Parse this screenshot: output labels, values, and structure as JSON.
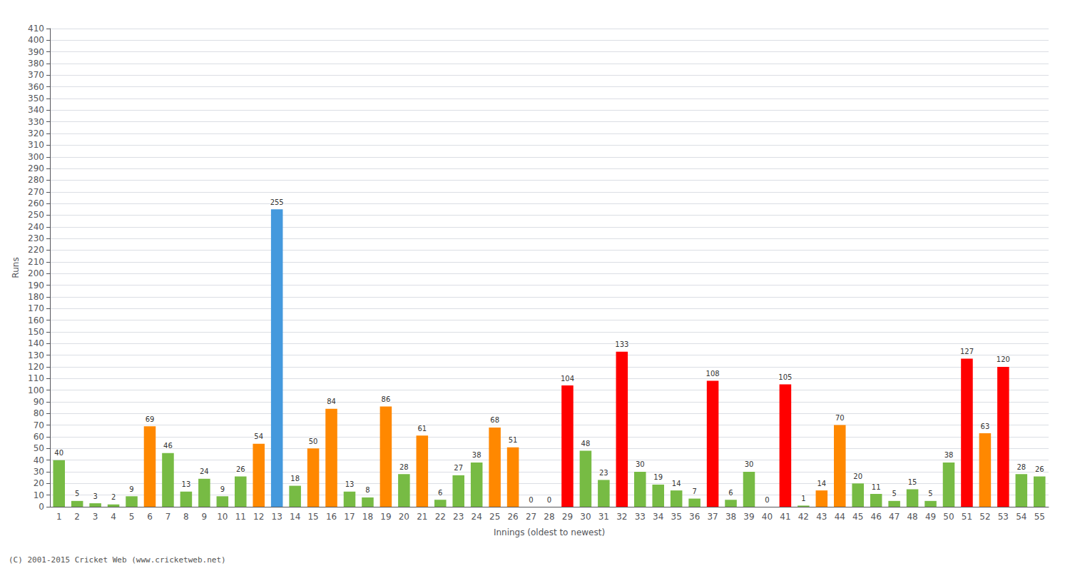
{
  "chart_data": {
    "type": "bar",
    "categories": [
      "1",
      "2",
      "3",
      "4",
      "5",
      "6",
      "7",
      "8",
      "9",
      "10",
      "11",
      "12",
      "13",
      "14",
      "15",
      "16",
      "17",
      "18",
      "19",
      "20",
      "21",
      "22",
      "23",
      "24",
      "25",
      "26",
      "27",
      "28",
      "29",
      "30",
      "31",
      "32",
      "33",
      "34",
      "35",
      "36",
      "37",
      "38",
      "39",
      "40",
      "41",
      "42",
      "43",
      "44",
      "45",
      "46",
      "47",
      "48",
      "49",
      "50",
      "51",
      "52",
      "53",
      "54",
      "55"
    ],
    "values": [
      40,
      5,
      3,
      2,
      9,
      69,
      46,
      13,
      24,
      9,
      26,
      54,
      255,
      18,
      50,
      84,
      13,
      8,
      86,
      28,
      61,
      6,
      27,
      38,
      68,
      51,
      0,
      0,
      104,
      48,
      23,
      133,
      30,
      19,
      14,
      7,
      108,
      6,
      30,
      0,
      105,
      1,
      14,
      70,
      20,
      11,
      5,
      15,
      5,
      38,
      127,
      63,
      120,
      28,
      26
    ],
    "colors": [
      "#77bb44",
      "#77bb44",
      "#77bb44",
      "#77bb44",
      "#77bb44",
      "#ff8800",
      "#77bb44",
      "#77bb44",
      "#77bb44",
      "#77bb44",
      "#77bb44",
      "#ff8800",
      "#4499dd",
      "#77bb44",
      "#ff8800",
      "#ff8800",
      "#77bb44",
      "#77bb44",
      "#ff8800",
      "#77bb44",
      "#ff8800",
      "#77bb44",
      "#77bb44",
      "#77bb44",
      "#ff8800",
      "#ff8800",
      "#77bb44",
      "#77bb44",
      "#ff0000",
      "#77bb44",
      "#77bb44",
      "#ff0000",
      "#77bb44",
      "#77bb44",
      "#77bb44",
      "#77bb44",
      "#ff0000",
      "#77bb44",
      "#77bb44",
      "#77bb44",
      "#ff0000",
      "#77bb44",
      "#ff8800",
      "#ff8800",
      "#77bb44",
      "#77bb44",
      "#77bb44",
      "#77bb44",
      "#77bb44",
      "#77bb44",
      "#ff0000",
      "#ff8800",
      "#ff0000",
      "#77bb44",
      "#77bb44"
    ],
    "xlabel": "Innings (oldest to newest)",
    "ylabel": "Runs",
    "ylim": [
      0,
      410
    ],
    "yticks": [
      0,
      10,
      20,
      30,
      40,
      50,
      60,
      70,
      80,
      90,
      100,
      110,
      120,
      130,
      140,
      150,
      160,
      170,
      180,
      190,
      200,
      210,
      220,
      230,
      240,
      250,
      260,
      270,
      280,
      290,
      300,
      310,
      320,
      330,
      340,
      350,
      360,
      370,
      380,
      390,
      400
    ],
    "grid": true,
    "data_labels": true,
    "footer": "(C) 2001-2015 Cricket Web (www.cricketweb.net)"
  }
}
